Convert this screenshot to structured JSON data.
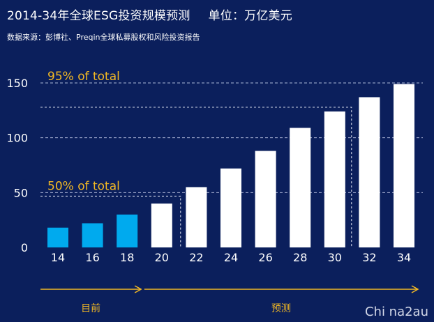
{
  "header": {
    "title": "2014-34年全球ESG投资规模预测",
    "unit": "单位：万亿美元",
    "source": "数据来源：彭博社、Preqin全球私募股权和风险投资报告"
  },
  "colors": {
    "background": "#0b1f5c",
    "current_bar": "#00aaee",
    "forecast_bar": "#ffffff",
    "annotation": "#f2b824",
    "gridline": "#aeb8d8"
  },
  "chart_data": {
    "type": "bar",
    "title": "2014-34年全球ESG投资规模预测",
    "xlabel": "",
    "ylabel": "",
    "ylim": [
      0,
      150
    ],
    "yticks": [
      0,
      50,
      100,
      150
    ],
    "categories": [
      "14",
      "16",
      "18",
      "20",
      "22",
      "24",
      "26",
      "28",
      "30",
      "32",
      "34"
    ],
    "series": [
      {
        "name": "目前",
        "values": [
          18,
          22,
          30,
          null,
          null,
          null,
          null,
          null,
          null,
          null,
          null
        ]
      },
      {
        "name": "预测",
        "values": [
          null,
          null,
          null,
          40,
          55,
          72,
          88,
          109,
          124,
          137,
          149
        ]
      }
    ],
    "annotations": [
      {
        "text": "95% of total",
        "value": 150
      },
      {
        "text": "50% of total",
        "value": 50
      }
    ],
    "period_labels": [
      {
        "text": "目前",
        "from": "14",
        "to": "18"
      },
      {
        "text": "预测",
        "from": "20",
        "to": "34"
      }
    ],
    "grid": true
  },
  "watermark": "Chi na2au"
}
